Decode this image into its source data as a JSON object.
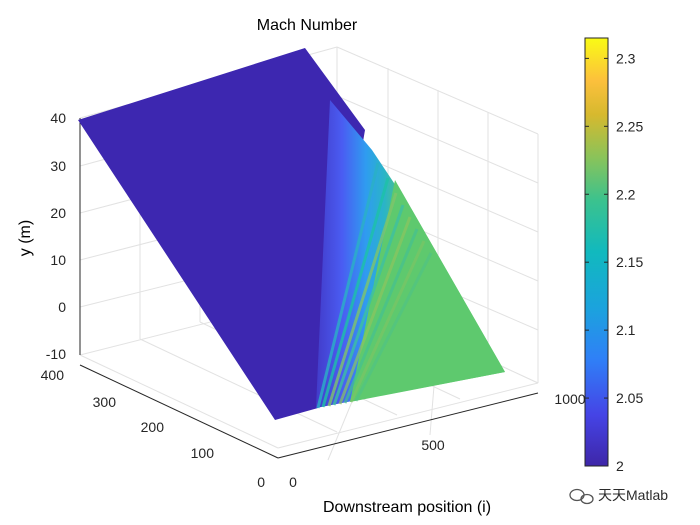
{
  "chart_data": {
    "type": "surface",
    "title": "Mach Number",
    "xlabel": "Downstream position (i)",
    "ylabel": "y (m)",
    "x_ticks": [
      "0",
      "500",
      "1000"
    ],
    "y_ticks": [
      "-10",
      "0",
      "10",
      "20",
      "30",
      "40"
    ],
    "depth_ticks": [
      "0",
      "100",
      "200",
      "300",
      "400"
    ],
    "colorbar": {
      "ticks": [
        "2",
        "2.05",
        "2.1",
        "2.15",
        "2.2",
        "2.25",
        "2.3"
      ],
      "range": [
        2,
        2.315
      ],
      "colormap": "parula"
    },
    "field": {
      "upstream_mach": 2.0,
      "downstream_mach": 2.19,
      "description_values": [
        2.0,
        2.19
      ]
    },
    "grid": true
  },
  "watermark": "天天Matlab"
}
